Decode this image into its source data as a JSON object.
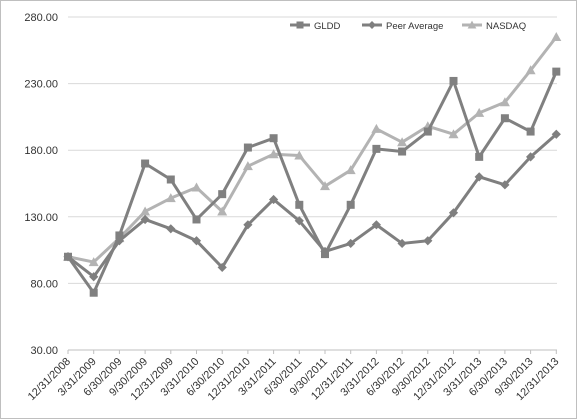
{
  "chart_data": {
    "type": "line",
    "title": "",
    "xlabel": "",
    "ylabel": "",
    "ylim": [
      30,
      280
    ],
    "y_ticks": [
      "30.00",
      "80.00",
      "130.00",
      "180.00",
      "230.00",
      "280.00"
    ],
    "y_tick_values": [
      30,
      80,
      130,
      180,
      230,
      280
    ],
    "grid": true,
    "legend_position": "top-right",
    "categories": [
      "12/31/2008",
      "3/31/2009",
      "6/30/2009",
      "9/30/2009",
      "12/31/2009",
      "3/31/2010",
      "6/30/2010",
      "12/31/2010",
      "3/31/2011",
      "6/30/2011",
      "9/30/2011",
      "12/31/2011",
      "3/31/2012",
      "6/30/2012",
      "9/30/2012",
      "12/31/2012",
      "3/31/2013",
      "6/30/2013",
      "9/30/2013",
      "12/31/2013"
    ],
    "series": [
      {
        "name": "GLDD",
        "color": "#808080",
        "marker": "square",
        "values": [
          100,
          73,
          116,
          170,
          158,
          128,
          147,
          182,
          189,
          139,
          102,
          139,
          181,
          179,
          194,
          232,
          175,
          204,
          194,
          239
        ]
      },
      {
        "name": "Peer Average",
        "color": "#7f7f7f",
        "marker": "diamond",
        "values": [
          100,
          85,
          112,
          128,
          121,
          112,
          92,
          124,
          143,
          127,
          104,
          110,
          124,
          110,
          112,
          133,
          160,
          154,
          175,
          192
        ]
      },
      {
        "name": "NASDAQ",
        "color": "#b3b3b3",
        "marker": "triangle",
        "values": [
          100,
          96,
          114,
          134,
          144,
          152,
          134,
          168,
          177,
          176,
          153,
          165,
          196,
          186,
          198,
          192,
          208,
          216,
          240,
          265
        ]
      }
    ]
  }
}
